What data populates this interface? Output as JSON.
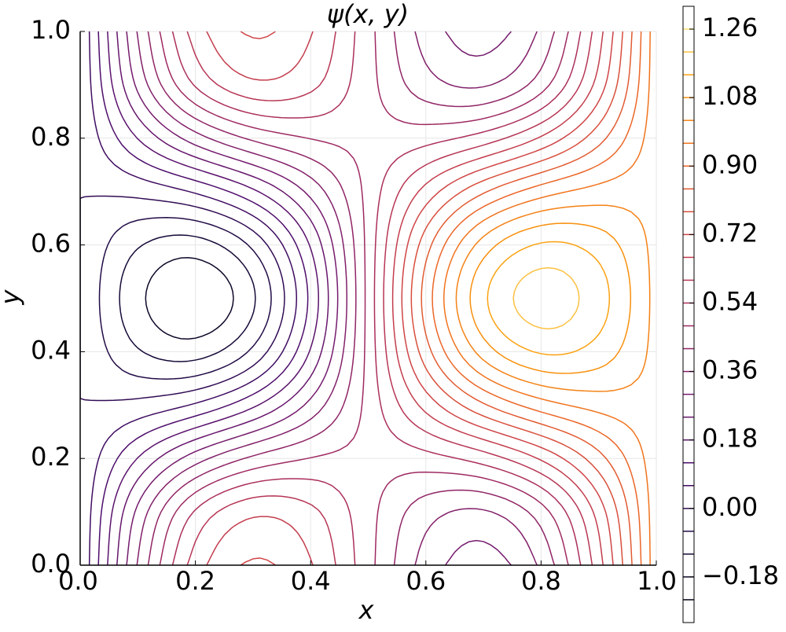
{
  "chart_data": {
    "type": "contour",
    "title": "ψ(x, y)",
    "x_label": "x",
    "y_label": "y",
    "x": [
      0,
      0.1,
      0.2,
      0.3,
      0.4,
      0.5,
      0.6,
      0.7,
      0.8,
      0.9,
      1.0
    ],
    "y": [
      0,
      0.1,
      0.2,
      0.3,
      0.4,
      0.5,
      0.6,
      0.7,
      0.8,
      0.9,
      1.0
    ],
    "z": [
      [
        0,
        0.365,
        0.628,
        0.728,
        0.665,
        0.5,
        0.335,
        0.272,
        0.372,
        0.635,
        1.0
      ],
      [
        0,
        0.314,
        0.546,
        0.646,
        0.614,
        0.5,
        0.386,
        0.354,
        0.454,
        0.686,
        1.0
      ],
      [
        0,
        0.182,
        0.332,
        0.432,
        0.482,
        0.5,
        0.518,
        0.568,
        0.668,
        0.818,
        1.0
      ],
      [
        0,
        0.018,
        0.068,
        0.168,
        0.318,
        0.5,
        0.682,
        0.832,
        0.932,
        0.982,
        1.0
      ],
      [
        0,
        -0.114,
        -0.146,
        -0.046,
        0.186,
        0.5,
        0.814,
        1.046,
        1.146,
        1.114,
        1.0
      ],
      [
        0,
        -0.165,
        -0.228,
        -0.128,
        0.135,
        0.5,
        0.865,
        1.128,
        1.228,
        1.165,
        1.0
      ],
      [
        0,
        -0.114,
        -0.146,
        -0.046,
        0.186,
        0.5,
        0.814,
        1.046,
        1.146,
        1.114,
        1.0
      ],
      [
        0,
        0.018,
        0.068,
        0.168,
        0.318,
        0.5,
        0.682,
        0.832,
        0.932,
        0.982,
        1.0
      ],
      [
        0,
        0.182,
        0.332,
        0.432,
        0.482,
        0.5,
        0.518,
        0.568,
        0.668,
        0.818,
        1.0
      ],
      [
        0,
        0.314,
        0.546,
        0.646,
        0.614,
        0.5,
        0.386,
        0.354,
        0.454,
        0.686,
        1.0
      ],
      [
        0,
        0.365,
        0.628,
        0.728,
        0.665,
        0.5,
        0.335,
        0.272,
        0.372,
        0.635,
        1.0
      ]
    ],
    "levels": [
      -0.24,
      -0.18,
      -0.12,
      -0.06,
      0.0,
      0.06,
      0.12,
      0.18,
      0.24,
      0.3,
      0.36,
      0.42,
      0.48,
      0.54,
      0.6,
      0.66,
      0.72,
      0.78,
      0.84,
      0.9,
      0.96,
      1.02,
      1.08,
      1.14,
      1.2,
      1.26
    ],
    "colormap": "inferno",
    "clim": [
      -0.3,
      1.32
    ],
    "cticks": [
      {
        "value": -0.18,
        "label": "−0.18"
      },
      {
        "value": 0.0,
        "label": "0.00"
      },
      {
        "value": 0.18,
        "label": "0.18"
      },
      {
        "value": 0.36,
        "label": "0.36"
      },
      {
        "value": 0.54,
        "label": "0.54"
      },
      {
        "value": 0.72,
        "label": "0.72"
      },
      {
        "value": 0.9,
        "label": "0.90"
      },
      {
        "value": 1.08,
        "label": "1.08"
      },
      {
        "value": 1.26,
        "label": "1.26"
      }
    ],
    "xlim": [
      0,
      1
    ],
    "ylim": [
      0,
      1
    ],
    "xticks": [
      {
        "value": 0,
        "label": "0.0"
      },
      {
        "value": 0.2,
        "label": "0.2"
      },
      {
        "value": 0.4,
        "label": "0.4"
      },
      {
        "value": 0.6,
        "label": "0.6"
      },
      {
        "value": 0.8,
        "label": "0.8"
      },
      {
        "value": 1.0,
        "label": "1.0"
      }
    ],
    "yticks": [
      {
        "value": 0,
        "label": "0.0"
      },
      {
        "value": 0.2,
        "label": "0.2"
      },
      {
        "value": 0.4,
        "label": "0.4"
      },
      {
        "value": 0.6,
        "label": "0.6"
      },
      {
        "value": 0.8,
        "label": "0.8"
      },
      {
        "value": 1.0,
        "label": "1.0"
      }
    ],
    "grid": true
  }
}
